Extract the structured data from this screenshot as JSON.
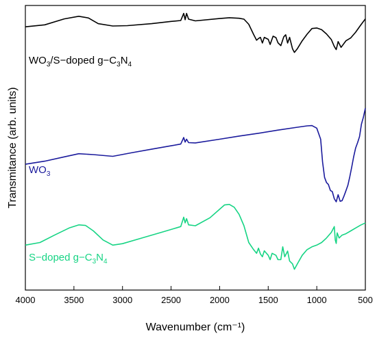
{
  "chart_data": {
    "type": "line",
    "title": "",
    "xlabel": "Wavenumber (cm⁻¹)",
    "ylabel": "Transmitance (arb. units)",
    "xlim": [
      4000,
      500
    ],
    "x_reversed": true,
    "ylim": [
      0,
      100
    ],
    "x_ticks": [
      4000,
      3500,
      3000,
      2500,
      2000,
      1500,
      1000,
      500
    ],
    "x_tick_labels": [
      "4000",
      "3500",
      "3000",
      "2500",
      "2000",
      "1500",
      "1000",
      "500"
    ],
    "y_ticks_shown": false,
    "grid": false,
    "legend": "none",
    "series": [
      {
        "name": "WO3/S-doped g-C3N4",
        "color": "#000000",
        "label_parts": [
          {
            "t": "WO",
            "s": ""
          },
          {
            "t": "3",
            "s": "sub"
          },
          {
            "t": "/S−doped g−C",
            "s": ""
          },
          {
            "t": "3",
            "s": "sub"
          },
          {
            "t": "N",
            "s": ""
          },
          {
            "t": "4",
            "s": "sub"
          }
        ],
        "points": [
          [
            4000,
            92.5
          ],
          [
            3800,
            93.2
          ],
          [
            3600,
            95.3
          ],
          [
            3450,
            96.2
          ],
          [
            3350,
            95.6
          ],
          [
            3250,
            93.6
          ],
          [
            3100,
            92.8
          ],
          [
            2950,
            92.9
          ],
          [
            2700,
            93.6
          ],
          [
            2500,
            94.4
          ],
          [
            2400,
            94.7
          ],
          [
            2370,
            97.2
          ],
          [
            2355,
            95.0
          ],
          [
            2340,
            97.2
          ],
          [
            2320,
            95.2
          ],
          [
            2250,
            94.6
          ],
          [
            2000,
            95.4
          ],
          [
            1900,
            95.7
          ],
          [
            1800,
            95.5
          ],
          [
            1750,
            95.2
          ],
          [
            1700,
            93.4
          ],
          [
            1650,
            89.8
          ],
          [
            1620,
            87.8
          ],
          [
            1600,
            88.4
          ],
          [
            1580,
            88.8
          ],
          [
            1560,
            86.8
          ],
          [
            1540,
            88.8
          ],
          [
            1500,
            88.1
          ],
          [
            1480,
            86.3
          ],
          [
            1450,
            89.2
          ],
          [
            1420,
            88.7
          ],
          [
            1400,
            86.9
          ],
          [
            1370,
            85.9
          ],
          [
            1340,
            89.0
          ],
          [
            1320,
            89.7
          ],
          [
            1300,
            86.8
          ],
          [
            1280,
            88.8
          ],
          [
            1250,
            84.8
          ],
          [
            1230,
            83.5
          ],
          [
            1200,
            84.8
          ],
          [
            1150,
            87.6
          ],
          [
            1100,
            89.9
          ],
          [
            1050,
            91.9
          ],
          [
            1000,
            92.1
          ],
          [
            950,
            91.5
          ],
          [
            900,
            90.0
          ],
          [
            850,
            88.0
          ],
          [
            820,
            85.6
          ],
          [
            800,
            84.5
          ],
          [
            780,
            87.3
          ],
          [
            750,
            85.3
          ],
          [
            700,
            87.6
          ],
          [
            650,
            88.6
          ],
          [
            600,
            90.6
          ],
          [
            550,
            93.0
          ],
          [
            500,
            95.3
          ]
        ]
      },
      {
        "name": "WO3",
        "color": "#1a1a9c",
        "label_parts": [
          {
            "t": "WO",
            "s": ""
          },
          {
            "t": "3",
            "s": "sub"
          }
        ],
        "points": [
          [
            4000,
            44.2
          ],
          [
            3800,
            45.3
          ],
          [
            3600,
            46.8
          ],
          [
            3450,
            47.9
          ],
          [
            3300,
            47.6
          ],
          [
            3100,
            47.0
          ],
          [
            2900,
            48.3
          ],
          [
            2700,
            49.5
          ],
          [
            2500,
            50.7
          ],
          [
            2400,
            51.3
          ],
          [
            2370,
            53.6
          ],
          [
            2355,
            52.0
          ],
          [
            2340,
            53.0
          ],
          [
            2320,
            51.8
          ],
          [
            2250,
            51.7
          ],
          [
            2000,
            53.0
          ],
          [
            1800,
            54.1
          ],
          [
            1600,
            55.1
          ],
          [
            1400,
            56.2
          ],
          [
            1200,
            57.2
          ],
          [
            1100,
            57.7
          ],
          [
            1050,
            57.8
          ],
          [
            1000,
            56.9
          ],
          [
            960,
            53.0
          ],
          [
            940,
            45.0
          ],
          [
            920,
            39.6
          ],
          [
            900,
            37.8
          ],
          [
            880,
            37.1
          ],
          [
            860,
            35.0
          ],
          [
            840,
            34.6
          ],
          [
            820,
            32.1
          ],
          [
            800,
            31.0
          ],
          [
            780,
            33.5
          ],
          [
            760,
            31.2
          ],
          [
            740,
            31.4
          ],
          [
            720,
            33.0
          ],
          [
            700,
            34.9
          ],
          [
            680,
            36.8
          ],
          [
            660,
            39.8
          ],
          [
            640,
            43.3
          ],
          [
            620,
            46.9
          ],
          [
            600,
            49.9
          ],
          [
            580,
            51.8
          ],
          [
            560,
            53.9
          ],
          [
            540,
            58.3
          ],
          [
            520,
            60.8
          ],
          [
            500,
            63.9
          ]
        ]
      },
      {
        "name": "S-doped g-C3N4",
        "color": "#16d484",
        "label_parts": [
          {
            "t": "S−doped g−C",
            "s": ""
          },
          {
            "t": "3",
            "s": "sub"
          },
          {
            "t": "N",
            "s": ""
          },
          {
            "t": "4",
            "s": "sub"
          }
        ],
        "points": [
          [
            4000,
            15.8
          ],
          [
            3850,
            16.7
          ],
          [
            3700,
            19.3
          ],
          [
            3550,
            21.8
          ],
          [
            3450,
            22.9
          ],
          [
            3380,
            22.7
          ],
          [
            3300,
            20.8
          ],
          [
            3200,
            17.6
          ],
          [
            3100,
            15.8
          ],
          [
            3000,
            16.3
          ],
          [
            2800,
            18.3
          ],
          [
            2600,
            20.3
          ],
          [
            2450,
            21.8
          ],
          [
            2400,
            22.3
          ],
          [
            2370,
            25.6
          ],
          [
            2355,
            23.6
          ],
          [
            2340,
            25.1
          ],
          [
            2320,
            22.9
          ],
          [
            2250,
            22.6
          ],
          [
            2100,
            25.4
          ],
          [
            2000,
            28.4
          ],
          [
            1950,
            29.9
          ],
          [
            1900,
            30.1
          ],
          [
            1850,
            29.1
          ],
          [
            1800,
            26.6
          ],
          [
            1750,
            22.6
          ],
          [
            1700,
            16.7
          ],
          [
            1650,
            14.2
          ],
          [
            1620,
            12.9
          ],
          [
            1600,
            14.7
          ],
          [
            1580,
            12.7
          ],
          [
            1560,
            11.7
          ],
          [
            1540,
            13.8
          ],
          [
            1500,
            12.2
          ],
          [
            1480,
            10.7
          ],
          [
            1460,
            12.9
          ],
          [
            1420,
            12.2
          ],
          [
            1400,
            10.7
          ],
          [
            1370,
            10.7
          ],
          [
            1350,
            15.2
          ],
          [
            1330,
            11.7
          ],
          [
            1300,
            13.7
          ],
          [
            1280,
            10.2
          ],
          [
            1250,
            9.2
          ],
          [
            1230,
            7.3
          ],
          [
            1200,
            9.2
          ],
          [
            1150,
            12.2
          ],
          [
            1100,
            14.2
          ],
          [
            1050,
            15.2
          ],
          [
            1000,
            15.8
          ],
          [
            950,
            16.7
          ],
          [
            900,
            18.3
          ],
          [
            850,
            20.3
          ],
          [
            820,
            22.3
          ],
          [
            810,
            17.6
          ],
          [
            800,
            16.4
          ],
          [
            790,
            20.1
          ],
          [
            770,
            18.3
          ],
          [
            740,
            19.3
          ],
          [
            700,
            19.8
          ],
          [
            650,
            20.8
          ],
          [
            600,
            21.8
          ],
          [
            550,
            22.8
          ],
          [
            500,
            23.6
          ]
        ]
      }
    ]
  }
}
